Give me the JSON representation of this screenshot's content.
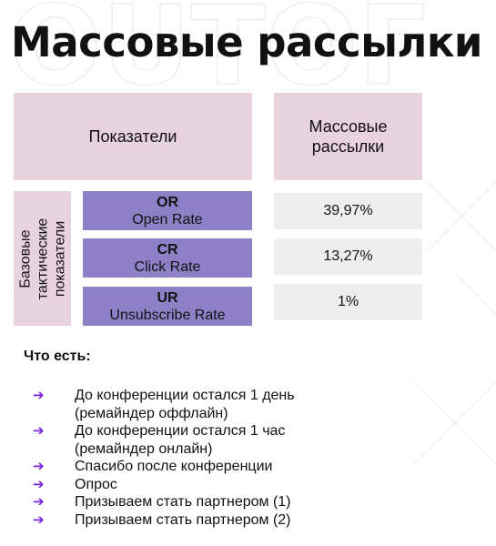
{
  "title": "Массовые рассылки",
  "watermark_text": "OUTOF",
  "table": {
    "header_left": "Показатели",
    "header_right": "Массовые рассылки",
    "group_label": "Базовые тактические показатели",
    "rows": [
      {
        "abbr": "OR",
        "name": "Open Rate",
        "value": "39,97%"
      },
      {
        "abbr": "CR",
        "name": "Click Rate",
        "value": "13,27%"
      },
      {
        "abbr": "UR",
        "name": "Unsubscribe Rate",
        "value": "1%"
      }
    ]
  },
  "section_label": "Что есть:",
  "list_items": [
    "До конференции остался 1 день\n(ремайндер оффлайн)",
    "До конференции остался 1 час\n(ремайндер онлайн)",
    "Спасибо после конференции",
    "Опрос",
    "Призываем стать партнером (1)",
    "Призываем стать партнером (2)"
  ],
  "colors": {
    "pink": "#e8d2de",
    "purple": "#8e80c7",
    "gray": "#eeeeee",
    "arrow": "#7a1fe0"
  },
  "icons": {
    "bullet": "arrow-right-icon"
  }
}
